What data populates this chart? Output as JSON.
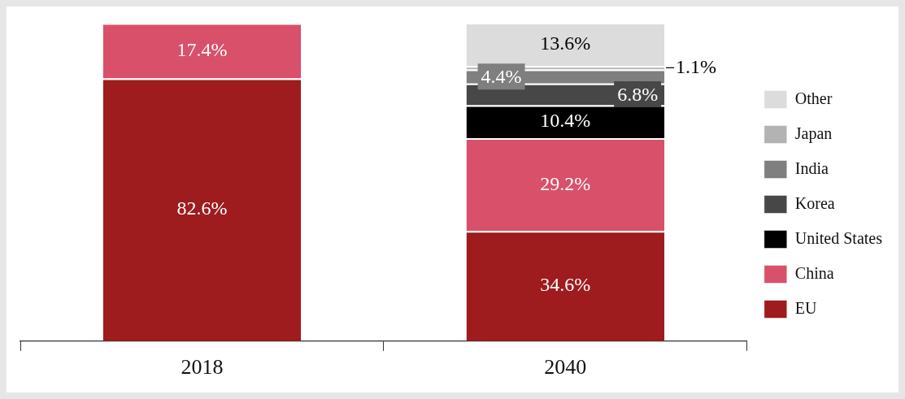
{
  "chart_data": {
    "type": "bar",
    "stacked": true,
    "legend": "right",
    "categories": [
      "2018",
      "2040"
    ],
    "series": [
      {
        "name": "EU",
        "color": "#9e1b1e",
        "values": [
          82.6,
          34.6
        ],
        "value_labels": [
          "82.6%",
          "34.6%"
        ]
      },
      {
        "name": "China",
        "color": "#d9506a",
        "values": [
          17.4,
          29.2
        ],
        "value_labels": [
          "17.4%",
          "29.2%"
        ]
      },
      {
        "name": "United States",
        "color": "#000000",
        "values": [
          null,
          10.4
        ],
        "value_labels": [
          null,
          "10.4%"
        ]
      },
      {
        "name": "Korea",
        "color": "#474747",
        "values": [
          null,
          6.8
        ],
        "value_labels": [
          null,
          "6.8%"
        ]
      },
      {
        "name": "India",
        "color": "#7f7f7f",
        "values": [
          null,
          4.4
        ],
        "value_labels": [
          null,
          "4.4%"
        ]
      },
      {
        "name": "Japan",
        "color": "#b3b3b3",
        "values": [
          null,
          1.1
        ],
        "value_labels": [
          null,
          "1.1%"
        ]
      },
      {
        "name": "Other",
        "color": "#dcdcdc",
        "values": [
          null,
          13.6
        ],
        "value_labels": [
          null,
          "13.6%"
        ]
      }
    ]
  }
}
